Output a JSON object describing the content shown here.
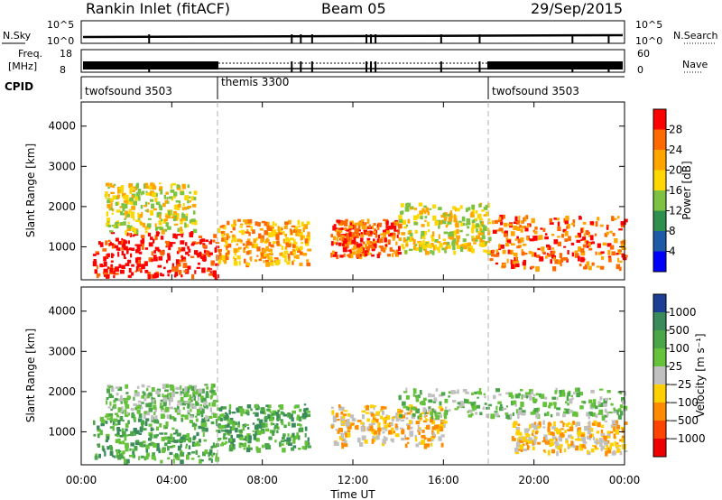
{
  "header": {
    "title": "Rankin Inlet (fitACF)",
    "beam": "Beam 05",
    "date": "29/Sep/2015"
  },
  "top_strip": {
    "nsky_label": "N.Sky",
    "nsky_ticks": [
      "10^5",
      "10^0"
    ],
    "nsearch_label": "N.Search",
    "nsearch_ticks": [
      "10^5",
      "10^0"
    ],
    "freq_label": "Freq.",
    "freq_unit": "[MHz]",
    "freq_ticks": [
      "18",
      "8"
    ],
    "nave_label": "Nave",
    "nave_ticks": [
      "60",
      "0"
    ],
    "cpid_label": "CPID",
    "cpid_segments": [
      {
        "name": "twofsound 3503",
        "start_hour": 0,
        "end_hour": 6
      },
      {
        "name": "themis 3300",
        "start_hour": 6,
        "end_hour": 18
      },
      {
        "name": "twofsound 3503",
        "start_hour": 18,
        "end_hour": 24
      }
    ]
  },
  "chart_data": [
    {
      "type": "heatmap",
      "name": "power",
      "ylabel": "Slant Range [km]",
      "yticks": [
        1000,
        2000,
        3000,
        4000
      ],
      "ylim": [
        180,
        4600
      ],
      "xlim": [
        0,
        24
      ],
      "colorbar": {
        "label": "Power [dB]",
        "ticks": [
          "28",
          "24",
          "20",
          "16",
          "12",
          "8",
          "4"
        ],
        "colors": [
          "#ff0000",
          "#ff6a00",
          "#ffa500",
          "#ffd700",
          "#7dc242",
          "#2f8f4f",
          "#1f5aa8",
          "#0000ff"
        ]
      },
      "echo_bands": [
        {
          "x": [
            0.5,
            6
          ],
          "y": [
            300,
            1400
          ],
          "level": "28"
        },
        {
          "x": [
            1,
            5
          ],
          "y": [
            1400,
            2600
          ],
          "level": "16"
        },
        {
          "x": [
            6,
            10
          ],
          "y": [
            600,
            1700
          ],
          "level": "20"
        },
        {
          "x": [
            11,
            14
          ],
          "y": [
            800,
            1700
          ],
          "level": "24"
        },
        {
          "x": [
            14,
            18
          ],
          "y": [
            900,
            2100
          ],
          "level": "16"
        },
        {
          "x": [
            18,
            24
          ],
          "y": [
            500,
            1800
          ],
          "level": "24"
        }
      ]
    },
    {
      "type": "heatmap",
      "name": "velocity",
      "xlabel": "Time UT",
      "ylabel": "Slant Range [km]",
      "yticks": [
        1000,
        2000,
        3000,
        4000
      ],
      "ylim": [
        180,
        4600
      ],
      "xlim": [
        0,
        24
      ],
      "xticks": [
        "00:00",
        "04:00",
        "08:00",
        "12:00",
        "16:00",
        "20:00",
        "00:00"
      ],
      "colorbar": {
        "label": "Velocity [m s⁻¹]",
        "ticks": [
          "1000",
          "500",
          "100",
          "25",
          "−25",
          "−100",
          "−500",
          "−1000"
        ],
        "colors": [
          "#1c3f95",
          "#3a8a5c",
          "#4aa648",
          "#66c23a",
          "#c0c0c0",
          "#ffd000",
          "#ff8c00",
          "#ff4400",
          "#ee0000"
        ]
      },
      "echo_bands": [
        {
          "x": [
            0.5,
            6
          ],
          "y": [
            300,
            1400
          ],
          "level": "100"
        },
        {
          "x": [
            1,
            6
          ],
          "y": [
            1400,
            2200
          ],
          "level": "25"
        },
        {
          "x": [
            6,
            10
          ],
          "y": [
            600,
            1700
          ],
          "level": "100"
        },
        {
          "x": [
            11,
            16
          ],
          "y": [
            700,
            1700
          ],
          "level": "−100"
        },
        {
          "x": [
            14,
            24
          ],
          "y": [
            1400,
            2100
          ],
          "level": "25"
        },
        {
          "x": [
            19,
            24
          ],
          "y": [
            500,
            1300
          ],
          "level": "−100"
        }
      ]
    }
  ]
}
